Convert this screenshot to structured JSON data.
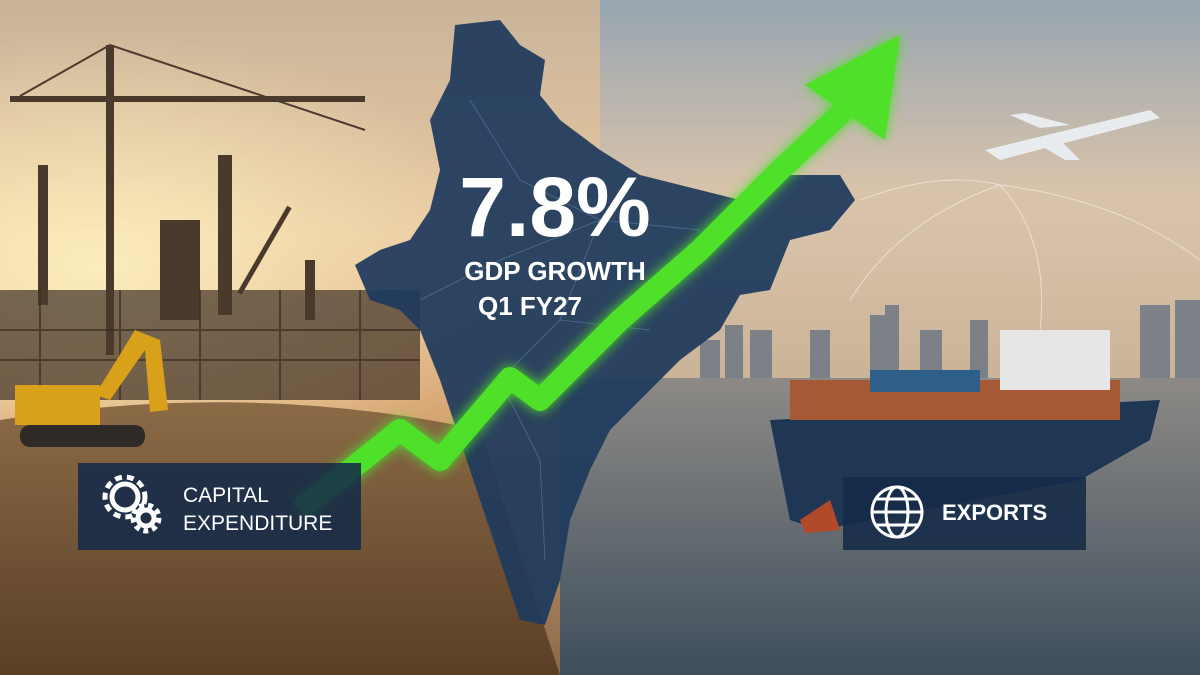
{
  "headline": {
    "value": "7.8%",
    "label": "GDP GROWTH",
    "period": "Q1 FY27"
  },
  "badges": [
    {
      "lines": [
        "CAPITAL",
        "EXPENDITURE"
      ]
    },
    {
      "lines": [
        "EXPORTS"
      ]
    }
  ]
}
